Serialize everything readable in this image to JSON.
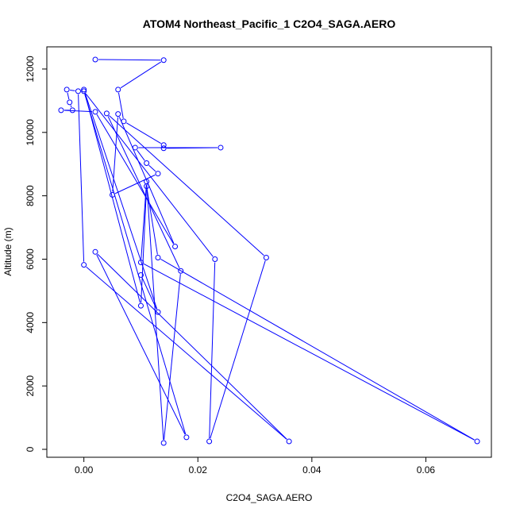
{
  "chart_data": {
    "type": "line",
    "title": "ATOM4 Northeast_Pacific_1 C2O4_SAGA.AERO",
    "xlabel": "C2O4_SAGA.AERO",
    "ylabel": "Altitude (m)",
    "xlim": [
      -0.0065,
      0.0715
    ],
    "ylim": [
      -250,
      12700
    ],
    "x_ticks": [
      0.0,
      0.02,
      0.04,
      0.06
    ],
    "x_tick_labels": [
      "0.00",
      "0.02",
      "0.04",
      "0.06"
    ],
    "y_ticks": [
      0,
      2000,
      4000,
      6000,
      8000,
      10000,
      12000
    ],
    "y_tick_labels": [
      "0",
      "2000",
      "4000",
      "6000",
      "8000",
      "10000",
      "12000"
    ],
    "grid": false,
    "series": [
      {
        "color": "#0000ff",
        "points": [
          {
            "x": 0.002,
            "y": 12300
          },
          {
            "x": 0.014,
            "y": 12280
          },
          {
            "x": 0.006,
            "y": 11350
          },
          {
            "x": 0.007,
            "y": 10350
          },
          {
            "x": 0.014,
            "y": 9600
          },
          {
            "x": 0.014,
            "y": 9500
          },
          {
            "x": 0.024,
            "y": 9520
          },
          {
            "x": 0.009,
            "y": 9520
          },
          {
            "x": 0.011,
            "y": 9030
          },
          {
            "x": 0.013,
            "y": 8700
          },
          {
            "x": 0.005,
            "y": 8030
          },
          {
            "x": 0.006,
            "y": 10580
          },
          {
            "x": 0.016,
            "y": 6400
          },
          {
            "x": 0.002,
            "y": 10650
          },
          {
            "x": -0.004,
            "y": 10700
          },
          {
            "x": -0.002,
            "y": 10700
          },
          {
            "x": -0.0025,
            "y": 10950
          },
          {
            "x": -0.003,
            "y": 11350
          },
          {
            "x": -0.001,
            "y": 11300
          },
          {
            "x": 0.0,
            "y": 5820
          },
          {
            "x": 0.036,
            "y": 250
          },
          {
            "x": 0.002,
            "y": 6230
          },
          {
            "x": 0.018,
            "y": 380
          },
          {
            "x": 0.0,
            "y": 11300
          },
          {
            "x": 0.023,
            "y": 6000
          },
          {
            "x": 0.022,
            "y": 250
          },
          {
            "x": 0.032,
            "y": 6050
          },
          {
            "x": 0.004,
            "y": 10600
          },
          {
            "x": 0.017,
            "y": 5630
          },
          {
            "x": 0.014,
            "y": 200
          },
          {
            "x": 0.011,
            "y": 8450
          },
          {
            "x": 0.01,
            "y": 5900
          },
          {
            "x": 0.069,
            "y": 250
          },
          {
            "x": 0.013,
            "y": 6050
          },
          {
            "x": 0.011,
            "y": 8300
          },
          {
            "x": 0.01,
            "y": 4530
          },
          {
            "x": 0.0,
            "y": 11350
          },
          {
            "x": 0.013,
            "y": 4330
          },
          {
            "x": 0.01,
            "y": 5500
          }
        ]
      }
    ]
  }
}
